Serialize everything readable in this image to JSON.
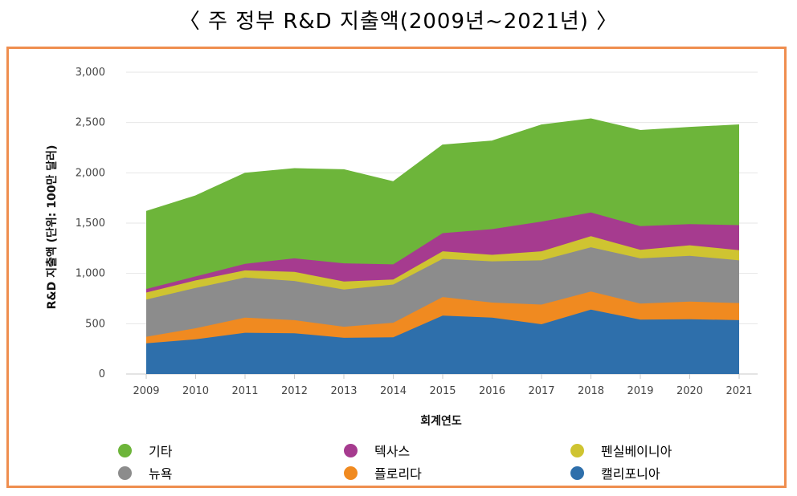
{
  "title": "〈 주 정부 R&D 지출액(2009년~2021년) 〉",
  "chart_data": {
    "type": "area",
    "stacked": true,
    "xlabel": "회계연도",
    "ylabel": "R&D 지출액 (단위: 100만 달러)",
    "ylim": [
      0,
      3000
    ],
    "yticks": [
      0,
      500,
      1000,
      1500,
      2000,
      2500,
      3000
    ],
    "ytick_labels": [
      "0",
      "500",
      "1,000",
      "1,500",
      "2,000",
      "2,500",
      "3,000"
    ],
    "grid": true,
    "legend_position": "bottom",
    "categories": [
      "2009",
      "2010",
      "2011",
      "2012",
      "2013",
      "2014",
      "2015",
      "2016",
      "2017",
      "2018",
      "2019",
      "2020",
      "2021"
    ],
    "series": [
      {
        "name": "캘리포니아",
        "color": "#2e6fab",
        "values": [
          305,
          345,
          410,
          405,
          360,
          365,
          580,
          560,
          495,
          640,
          540,
          545,
          535
        ]
      },
      {
        "name": "플로리다",
        "color": "#f08a20",
        "values": [
          65,
          110,
          150,
          130,
          110,
          145,
          185,
          150,
          195,
          180,
          160,
          175,
          170
        ]
      },
      {
        "name": "뉴욕",
        "color": "#8c8c8c",
        "values": [
          370,
          400,
          400,
          390,
          370,
          380,
          380,
          410,
          440,
          440,
          450,
          455,
          425
        ]
      },
      {
        "name": "펜실베이니아",
        "color": "#cfc431",
        "values": [
          70,
          75,
          70,
          90,
          80,
          50,
          75,
          65,
          90,
          110,
          85,
          105,
          100
        ]
      },
      {
        "name": "텍사스",
        "color": "#a63b8f",
        "values": [
          35,
          40,
          65,
          135,
          180,
          150,
          180,
          255,
          295,
          235,
          235,
          210,
          250
        ]
      },
      {
        "name": "기타",
        "color": "#6db53a",
        "values": [
          770,
          800,
          900,
          890,
          930,
          820,
          875,
          875,
          960,
          930,
          950,
          960,
          995
        ]
      }
    ]
  },
  "legend_rows": [
    [
      {
        "label": "기타",
        "color": "#6db53a"
      },
      {
        "label": "텍사스",
        "color": "#a63b8f"
      },
      {
        "label": "펜실베이니아",
        "color": "#cfc431"
      }
    ],
    [
      {
        "label": "뉴욕",
        "color": "#8c8c8c"
      },
      {
        "label": "플로리다",
        "color": "#f08a20"
      },
      {
        "label": "캘리포니아",
        "color": "#2e6fab"
      }
    ]
  ]
}
